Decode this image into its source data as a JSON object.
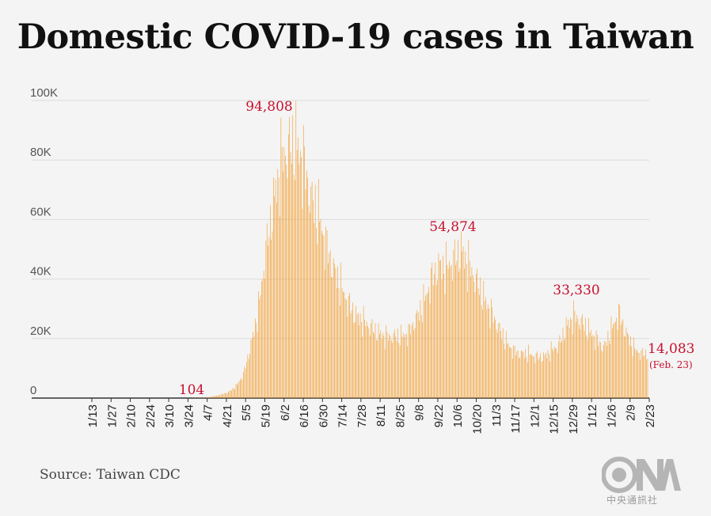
{
  "title": "Domestic COVID-19 cases in Taiwan",
  "source": "Source: Taiwan CDC",
  "logo": {
    "text": "CNA",
    "subtitle": "中央通訊社"
  },
  "colors": {
    "bar": "#f39a27",
    "annotation": "#c8102e",
    "grid": "#dcdcdc",
    "axis": "#333333",
    "tick": "#222222",
    "ytick": "#555555"
  },
  "chart_data": {
    "type": "bar",
    "title": "Domestic COVID-19 cases in Taiwan",
    "xlabel": "",
    "ylabel": "",
    "ylim": [
      0,
      100000
    ],
    "yticks": [
      0,
      20000,
      40000,
      60000,
      80000,
      100000
    ],
    "ytick_labels": [
      "0",
      "20K",
      "40K",
      "60K",
      "80K",
      "100K"
    ],
    "grid": true,
    "xtick_labels": [
      "1/13",
      "1/27",
      "2/10",
      "2/24",
      "3/10",
      "3/24",
      "4/7",
      "4/21",
      "5/5",
      "5/19",
      "6/2",
      "6/16",
      "6/30",
      "7/14",
      "7/28",
      "8/11",
      "8/25",
      "9/8",
      "9/22",
      "10/6",
      "10/20",
      "11/3",
      "11/17",
      "12/1",
      "12/15",
      "12/29",
      "1/12",
      "1/26",
      "2/9",
      "2/23"
    ],
    "weekly_values": [
      0,
      0,
      0,
      0,
      0,
      0,
      0,
      0,
      0,
      0,
      0,
      0,
      0,
      0,
      0,
      0,
      0,
      0,
      0,
      0,
      10,
      30,
      80,
      104,
      600,
      1200,
      2000,
      4000,
      8000,
      18000,
      30000,
      50000,
      66000,
      80000,
      85000,
      86000,
      80000,
      68000,
      62000,
      52000,
      44000,
      38000,
      32000,
      28000,
      26000,
      24000,
      22000,
      21000,
      21000,
      21000,
      22000,
      27000,
      32000,
      40000,
      45000,
      44000,
      47000,
      50000,
      45000,
      40000,
      34000,
      29000,
      24000,
      19000,
      16000,
      15000,
      15000,
      14000,
      14000,
      16000,
      18000,
      24000,
      28000,
      26000,
      23000,
      20000,
      17000,
      23000,
      29000,
      22000,
      17000,
      15000
    ],
    "annotations": [
      {
        "text": "104",
        "value": 104
      },
      {
        "text": "94,808",
        "value": 94808
      },
      {
        "text": "54,874",
        "value": 54874
      },
      {
        "text": "33,330",
        "value": 33330
      },
      {
        "text": "14,083",
        "value": 14083,
        "note": "(Feb. 23)"
      }
    ]
  }
}
